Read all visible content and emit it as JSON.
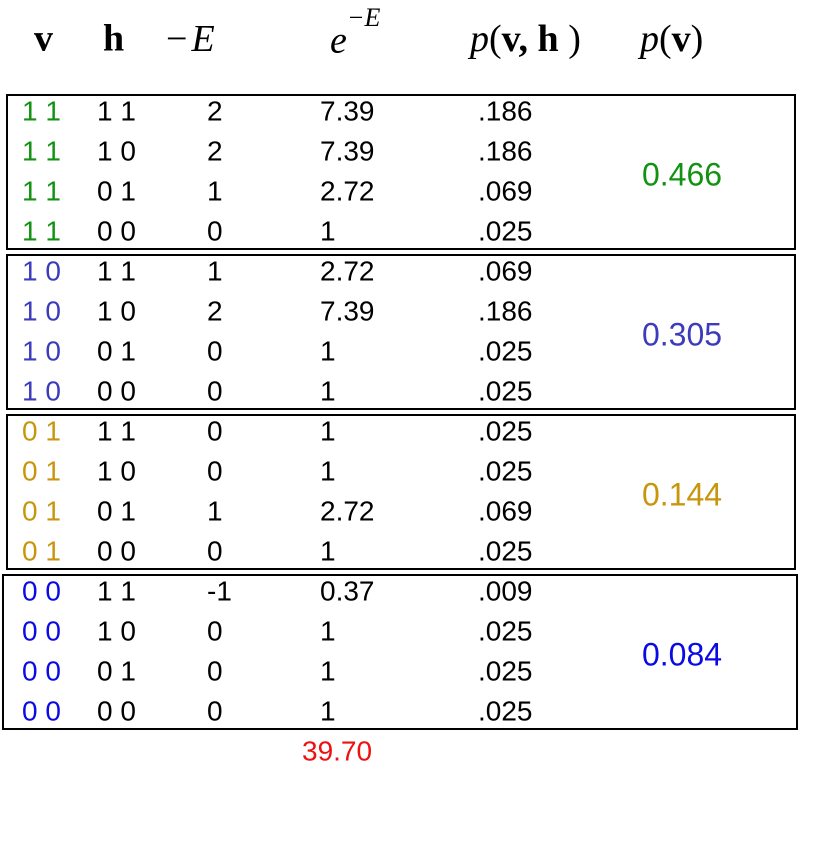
{
  "header": [
    [
      "v"
    ],
    [
      "h"
    ],
    [
      "−",
      "E"
    ],
    [
      "e",
      "−E"
    ],
    [
      "p",
      "(",
      "v, h",
      " )"
    ],
    [
      "p",
      "(",
      "v",
      ")"
    ]
  ],
  "groups": [
    {
      "v": "1 1",
      "color": "#129212",
      "pv": "0.466",
      "rows": [
        [
          "1 1",
          "2",
          "7.39",
          ".186"
        ],
        [
          "1 0",
          "2",
          "7.39",
          ".186"
        ],
        [
          "0 1",
          "1",
          "2.72",
          ".069"
        ],
        [
          "0 0",
          "0",
          "1",
          ".025"
        ]
      ]
    },
    {
      "v": "1 0",
      "color": "#3b3bbb",
      "pv": "0.305",
      "rows": [
        [
          "1 1",
          "1",
          "2.72",
          ".069"
        ],
        [
          "1 0",
          "2",
          "7.39",
          ".186"
        ],
        [
          "0 1",
          "0",
          "1",
          ".025"
        ],
        [
          "0 0",
          "0",
          "1",
          ".025"
        ]
      ]
    },
    {
      "v": "0 1",
      "color": "#c8960c",
      "pv": "0.144",
      "rows": [
        [
          "1 1",
          "0",
          "1",
          ".025"
        ],
        [
          "1 0",
          "0",
          "1",
          ".025"
        ],
        [
          "0 1",
          "1",
          "2.72",
          ".069"
        ],
        [
          "0 0",
          "0",
          "1",
          ".025"
        ]
      ]
    },
    {
      "v": "0 0",
      "color": "#0a0ae6",
      "pv": "0.084",
      "rows": [
        [
          "1 1",
          "-1",
          "0.37",
          ".009"
        ],
        [
          "1 0",
          "0",
          "1",
          ".025"
        ],
        [
          "0 1",
          "0",
          "1",
          ".025"
        ],
        [
          "0 0",
          "0",
          "1",
          ".025"
        ]
      ]
    }
  ],
  "total": {
    "text": "39.70",
    "color": "#ee1111"
  }
}
